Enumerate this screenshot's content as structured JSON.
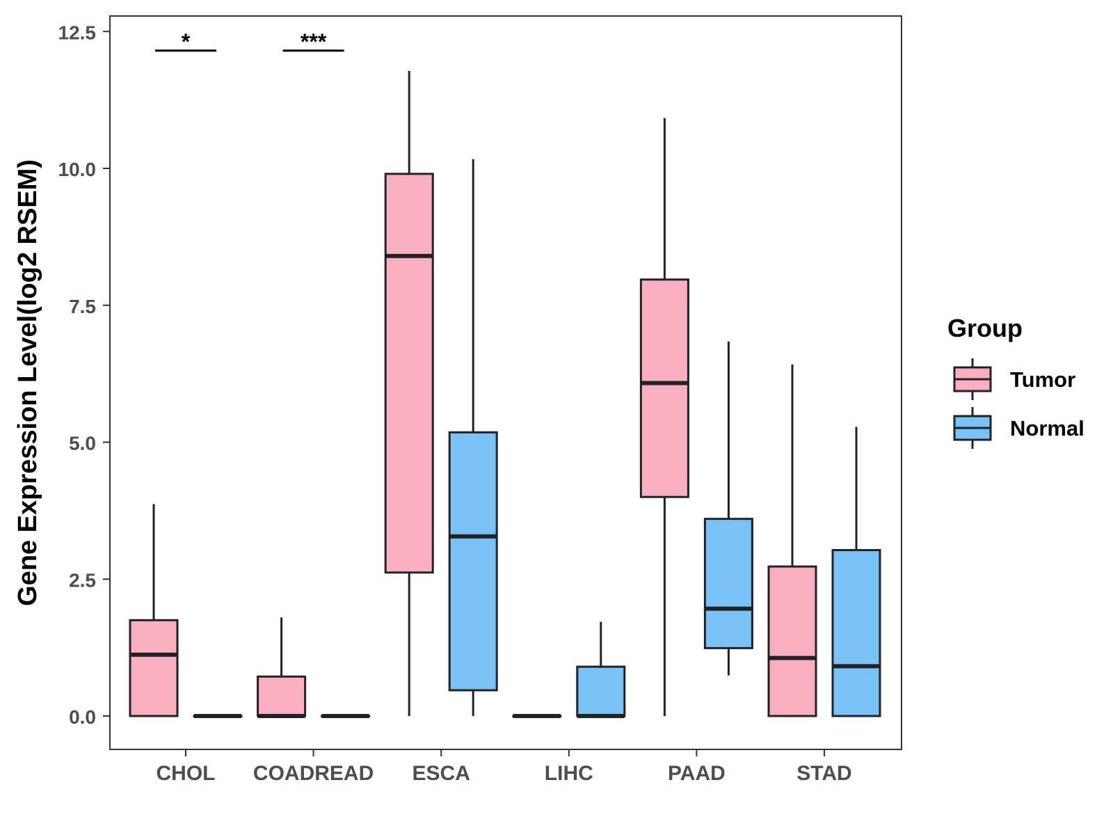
{
  "chart_data": {
    "type": "boxplot",
    "title": "",
    "xlabel": "",
    "ylabel": "Gene Expression Level(log2 RSEM)",
    "ylim": [
      -0.6,
      12.8
    ],
    "yticks": [
      "0.0",
      "2.5",
      "5.0",
      "7.5",
      "10.0",
      "12.5"
    ],
    "ytick_values": [
      0,
      2.5,
      5,
      7.5,
      10,
      12.5
    ],
    "grid": false,
    "categories": [
      "CHOL",
      "COADREAD",
      "ESCA",
      "LIHC",
      "PAAD",
      "STAD"
    ],
    "legend": {
      "title": "Group",
      "position": "right",
      "entries": [
        {
          "name": "Tumor",
          "color": "#fbb0c2"
        },
        {
          "name": "Normal",
          "color": "#78c2f8"
        }
      ]
    },
    "series": [
      {
        "name": "Tumor",
        "color": "#fbb0c2",
        "boxes": [
          {
            "category": "CHOL",
            "min": 0,
            "q1": 0,
            "median": 1.12,
            "q3": 1.75,
            "max": 3.87
          },
          {
            "category": "COADREAD",
            "min": 0,
            "q1": 0,
            "median": 0,
            "q3": 0.72,
            "max": 1.8
          },
          {
            "category": "ESCA",
            "min": 0,
            "q1": 2.62,
            "median": 8.4,
            "q3": 9.9,
            "max": 11.78
          },
          {
            "category": "LIHC",
            "min": 0,
            "q1": 0,
            "median": 0,
            "q3": 0,
            "max": 0
          },
          {
            "category": "PAAD",
            "min": 0,
            "q1": 4.0,
            "median": 6.08,
            "q3": 7.97,
            "max": 10.92
          },
          {
            "category": "STAD",
            "min": 0,
            "q1": 0,
            "median": 1.06,
            "q3": 2.73,
            "max": 6.42
          }
        ]
      },
      {
        "name": "Normal",
        "color": "#78c2f8",
        "boxes": [
          {
            "category": "CHOL",
            "min": 0,
            "q1": 0,
            "median": 0,
            "q3": 0,
            "max": 0
          },
          {
            "category": "COADREAD",
            "min": 0,
            "q1": 0,
            "median": 0,
            "q3": 0,
            "max": 0
          },
          {
            "category": "ESCA",
            "min": 0,
            "q1": 0.47,
            "median": 3.28,
            "q3": 5.18,
            "max": 10.17
          },
          {
            "category": "LIHC",
            "min": 0,
            "q1": 0,
            "median": 0,
            "q3": 0.9,
            "max": 1.72
          },
          {
            "category": "PAAD",
            "min": 0.74,
            "q1": 1.24,
            "median": 1.96,
            "q3": 3.6,
            "max": 6.84
          },
          {
            "category": "STAD",
            "min": 0,
            "q1": 0,
            "median": 0.91,
            "q3": 3.03,
            "max": 5.28
          }
        ]
      }
    ],
    "annotations": [
      {
        "category": "CHOL",
        "text": "*",
        "y": 12.15
      },
      {
        "category": "COADREAD",
        "text": "***",
        "y": 12.15
      }
    ]
  }
}
